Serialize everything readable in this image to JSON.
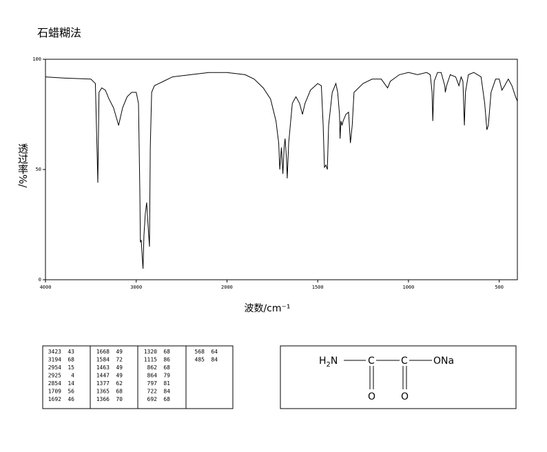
{
  "chart_data": {
    "type": "line",
    "title": "石蜡糊法",
    "xlabel": "波数/cm⁻¹",
    "ylabel": "透过率%/",
    "xlim": [
      4000,
      400
    ],
    "xbreak": 2000,
    "xticks": [
      4000,
      3000,
      2000,
      1500,
      1000,
      500
    ],
    "ylim": [
      0,
      100
    ],
    "yticks": [
      0,
      50,
      100
    ],
    "color": "#000000",
    "x": [
      4000,
      3800,
      3500,
      3450,
      3423,
      3410,
      3380,
      3340,
      3300,
      3250,
      3194,
      3150,
      3100,
      3050,
      3000,
      2975,
      2960,
      2954,
      2945,
      2930,
      2925,
      2915,
      2900,
      2885,
      2870,
      2854,
      2845,
      2830,
      2800,
      2750,
      2700,
      2600,
      2400,
      2200,
      2000,
      1900,
      1850,
      1800,
      1760,
      1730,
      1715,
      1709,
      1700,
      1692,
      1685,
      1680,
      1672,
      1668,
      1660,
      1640,
      1620,
      1600,
      1584,
      1570,
      1540,
      1500,
      1480,
      1470,
      1463,
      1455,
      1447,
      1440,
      1420,
      1400,
      1390,
      1380,
      1377,
      1372,
      1366,
      1360,
      1345,
      1330,
      1320,
      1310,
      1300,
      1250,
      1200,
      1150,
      1115,
      1100,
      1050,
      1000,
      950,
      900,
      880,
      870,
      866,
      862,
      858,
      840,
      820,
      800,
      797,
      790,
      770,
      740,
      722,
      710,
      700,
      692,
      686,
      670,
      640,
      600,
      580,
      568,
      560,
      545,
      520,
      500,
      485,
      470,
      450,
      430,
      410,
      400
    ],
    "values": [
      92,
      91.5,
      91,
      89,
      44,
      85,
      87,
      86,
      82,
      78,
      70,
      78,
      83,
      85,
      85,
      80,
      40,
      17,
      18,
      8,
      5,
      20,
      30,
      35,
      25,
      15,
      60,
      85,
      88,
      89,
      90,
      92,
      93,
      94,
      94,
      93,
      91,
      87,
      82,
      72,
      62,
      50,
      60,
      48,
      60,
      64,
      55,
      46,
      62,
      80,
      83,
      80,
      75,
      80,
      86,
      89,
      88,
      70,
      51,
      52,
      50,
      70,
      85,
      89,
      85,
      75,
      64,
      72,
      70,
      72,
      75,
      76,
      62,
      70,
      85,
      89,
      91,
      91,
      87,
      90,
      93,
      94,
      93,
      94,
      93,
      85,
      72,
      82,
      90,
      94,
      94,
      88,
      85,
      88,
      93,
      92,
      88,
      92,
      90,
      70,
      85,
      93,
      94,
      92,
      80,
      68,
      70,
      85,
      91,
      91,
      86,
      88,
      91,
      88,
      83,
      81
    ]
  },
  "peak_table": {
    "columns": [
      [
        [
          3423,
          43
        ],
        [
          3194,
          68
        ],
        [
          2954,
          15
        ],
        [
          2925,
          4
        ],
        [
          2854,
          14
        ],
        [
          1709,
          56
        ],
        [
          1692,
          46
        ]
      ],
      [
        [
          1668,
          49
        ],
        [
          1584,
          72
        ],
        [
          1463,
          49
        ],
        [
          1447,
          49
        ],
        [
          1377,
          62
        ],
        [
          1365,
          68
        ],
        [
          1366,
          70
        ]
      ],
      [
        [
          1320,
          68
        ],
        [
          1115,
          86
        ],
        [
          862,
          68
        ],
        [
          864,
          79
        ],
        [
          797,
          81
        ],
        [
          722,
          84
        ],
        [
          692,
          68
        ]
      ],
      [
        [
          568,
          64
        ],
        [
          485,
          84
        ]
      ]
    ]
  },
  "structure": {
    "amine": [
      "H",
      "2",
      "N"
    ],
    "carbons": [
      "C",
      "C"
    ],
    "ester": "ONa",
    "oxygens": [
      "O",
      "O"
    ]
  }
}
